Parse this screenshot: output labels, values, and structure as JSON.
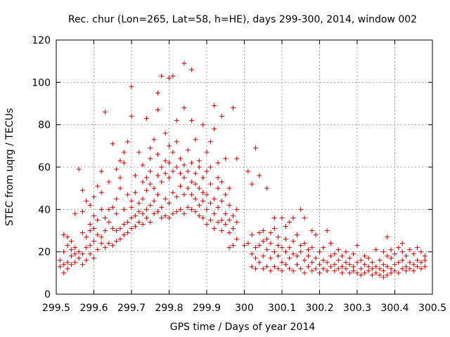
{
  "chart_data": {
    "type": "scatter",
    "title": "Rec. chur (Lon=265, Lat=58, h=HE), days 299-300, 2014, window 002",
    "xlabel": "GPS time / Days of year 2014",
    "ylabel": "STEC from uqrg / TECUs",
    "xlim": [
      299.5,
      300.5
    ],
    "ylim": [
      0,
      120
    ],
    "x_ticks": [
      "299.5",
      "299.6",
      "299.7",
      "299.8",
      "299.9",
      "300",
      "300.1",
      "300.2",
      "300.3",
      "300.4",
      "300.5"
    ],
    "y_ticks": [
      "0",
      "20",
      "40",
      "60",
      "80",
      "100",
      "120"
    ],
    "grid": true,
    "marker": "+",
    "color": "#cc0000",
    "points": [
      [
        299.51,
        13
      ],
      [
        299.51,
        16
      ],
      [
        299.52,
        10
      ],
      [
        299.52,
        14
      ],
      [
        299.52,
        20
      ],
      [
        299.52,
        28
      ],
      [
        299.53,
        12
      ],
      [
        299.53,
        15
      ],
      [
        299.53,
        23
      ],
      [
        299.53,
        27
      ],
      [
        299.54,
        14
      ],
      [
        299.54,
        18
      ],
      [
        299.54,
        21
      ],
      [
        299.54,
        25
      ],
      [
        299.55,
        15
      ],
      [
        299.55,
        19
      ],
      [
        299.55,
        22
      ],
      [
        299.55,
        38
      ],
      [
        299.56,
        17
      ],
      [
        299.56,
        20
      ],
      [
        299.56,
        59
      ],
      [
        299.57,
        14
      ],
      [
        299.57,
        19
      ],
      [
        299.57,
        29
      ],
      [
        299.57,
        39
      ],
      [
        299.57,
        49
      ],
      [
        299.58,
        16
      ],
      [
        299.58,
        22
      ],
      [
        299.58,
        27
      ],
      [
        299.58,
        44
      ],
      [
        299.59,
        19
      ],
      [
        299.59,
        23
      ],
      [
        299.59,
        30
      ],
      [
        299.59,
        33
      ],
      [
        299.59,
        42
      ],
      [
        299.6,
        17
      ],
      [
        299.6,
        25
      ],
      [
        299.6,
        31
      ],
      [
        299.6,
        37
      ],
      [
        299.6,
        46
      ],
      [
        299.61,
        21
      ],
      [
        299.61,
        28
      ],
      [
        299.61,
        35
      ],
      [
        299.61,
        51
      ],
      [
        299.62,
        24
      ],
      [
        299.62,
        27
      ],
      [
        299.62,
        40
      ],
      [
        299.62,
        48
      ],
      [
        299.62,
        58
      ],
      [
        299.63,
        22
      ],
      [
        299.63,
        30
      ],
      [
        299.63,
        36
      ],
      [
        299.63,
        86
      ],
      [
        299.64,
        24
      ],
      [
        299.64,
        34
      ],
      [
        299.64,
        40
      ],
      [
        299.64,
        53
      ],
      [
        299.65,
        23
      ],
      [
        299.65,
        31
      ],
      [
        299.65,
        41
      ],
      [
        299.65,
        71
      ],
      [
        299.66,
        25
      ],
      [
        299.66,
        30
      ],
      [
        299.66,
        38
      ],
      [
        299.66,
        45
      ],
      [
        299.66,
        59
      ],
      [
        299.67,
        26
      ],
      [
        299.67,
        31
      ],
      [
        299.67,
        50
      ],
      [
        299.67,
        55
      ],
      [
        299.67,
        63
      ],
      [
        299.68,
        28
      ],
      [
        299.68,
        33
      ],
      [
        299.68,
        40
      ],
      [
        299.68,
        62
      ],
      [
        299.68,
        67
      ],
      [
        299.69,
        29
      ],
      [
        299.69,
        34
      ],
      [
        299.69,
        47
      ],
      [
        299.69,
        72
      ],
      [
        299.7,
        31
      ],
      [
        299.7,
        36
      ],
      [
        299.7,
        41
      ],
      [
        299.7,
        44
      ],
      [
        299.7,
        84
      ],
      [
        299.7,
        98
      ],
      [
        299.71,
        32
      ],
      [
        299.71,
        37
      ],
      [
        299.71,
        48
      ],
      [
        299.71,
        56
      ],
      [
        299.72,
        34
      ],
      [
        299.72,
        39
      ],
      [
        299.72,
        43
      ],
      [
        299.72,
        67
      ],
      [
        299.73,
        33
      ],
      [
        299.73,
        38
      ],
      [
        299.73,
        45
      ],
      [
        299.73,
        53
      ],
      [
        299.73,
        61
      ],
      [
        299.74,
        36
      ],
      [
        299.74,
        40
      ],
      [
        299.74,
        49
      ],
      [
        299.74,
        55
      ],
      [
        299.74,
        83
      ],
      [
        299.75,
        34
      ],
      [
        299.75,
        42
      ],
      [
        299.75,
        52
      ],
      [
        299.75,
        58
      ],
      [
        299.75,
        64
      ],
      [
        299.75,
        69
      ],
      [
        299.76,
        38
      ],
      [
        299.76,
        44
      ],
      [
        299.76,
        50
      ],
      [
        299.76,
        73
      ],
      [
        299.77,
        39
      ],
      [
        299.77,
        47
      ],
      [
        299.77,
        56
      ],
      [
        299.77,
        66
      ],
      [
        299.77,
        87
      ],
      [
        299.77,
        95
      ],
      [
        299.78,
        36
      ],
      [
        299.78,
        41
      ],
      [
        299.78,
        53
      ],
      [
        299.78,
        60
      ],
      [
        299.78,
        103
      ],
      [
        299.79,
        37
      ],
      [
        299.79,
        45
      ],
      [
        299.79,
        57
      ],
      [
        299.79,
        63
      ],
      [
        299.79,
        76
      ],
      [
        299.8,
        36
      ],
      [
        299.8,
        43
      ],
      [
        299.8,
        55
      ],
      [
        299.8,
        62
      ],
      [
        299.8,
        70
      ],
      [
        299.8,
        102
      ],
      [
        299.81,
        38
      ],
      [
        299.81,
        48
      ],
      [
        299.81,
        58
      ],
      [
        299.81,
        67
      ],
      [
        299.81,
        103
      ],
      [
        299.82,
        39
      ],
      [
        299.82,
        46
      ],
      [
        299.82,
        60
      ],
      [
        299.82,
        72
      ],
      [
        299.82,
        82
      ],
      [
        299.83,
        40
      ],
      [
        299.83,
        51
      ],
      [
        299.83,
        57
      ],
      [
        299.83,
        64
      ],
      [
        299.84,
        38
      ],
      [
        299.84,
        47
      ],
      [
        299.84,
        55
      ],
      [
        299.84,
        61
      ],
      [
        299.84,
        88
      ],
      [
        299.84,
        109
      ],
      [
        299.85,
        41
      ],
      [
        299.85,
        50
      ],
      [
        299.85,
        58
      ],
      [
        299.85,
        68
      ],
      [
        299.86,
        40
      ],
      [
        299.86,
        47
      ],
      [
        299.86,
        53
      ],
      [
        299.86,
        62
      ],
      [
        299.86,
        82
      ],
      [
        299.86,
        106
      ],
      [
        299.87,
        39
      ],
      [
        299.87,
        45
      ],
      [
        299.87,
        52
      ],
      [
        299.87,
        57
      ],
      [
        299.87,
        73
      ],
      [
        299.88,
        37
      ],
      [
        299.88,
        42
      ],
      [
        299.88,
        50
      ],
      [
        299.88,
        60
      ],
      [
        299.88,
        63
      ],
      [
        299.89,
        36
      ],
      [
        299.89,
        44
      ],
      [
        299.89,
        48
      ],
      [
        299.89,
        55
      ],
      [
        299.89,
        80
      ],
      [
        299.9,
        33
      ],
      [
        299.9,
        40
      ],
      [
        299.9,
        47
      ],
      [
        299.9,
        58
      ],
      [
        299.9,
        67
      ],
      [
        299.91,
        35
      ],
      [
        299.91,
        43
      ],
      [
        299.91,
        52
      ],
      [
        299.91,
        60
      ],
      [
        299.91,
        72
      ],
      [
        299.92,
        31
      ],
      [
        299.92,
        38
      ],
      [
        299.92,
        45
      ],
      [
        299.92,
        89
      ],
      [
        299.92,
        78
      ],
      [
        299.93,
        34
      ],
      [
        299.93,
        41
      ],
      [
        299.93,
        50
      ],
      [
        299.93,
        55
      ],
      [
        299.93,
        62
      ],
      [
        299.94,
        30
      ],
      [
        299.94,
        35
      ],
      [
        299.94,
        44
      ],
      [
        299.94,
        53
      ],
      [
        299.94,
        84
      ],
      [
        299.95,
        33
      ],
      [
        299.95,
        38
      ],
      [
        299.95,
        47
      ],
      [
        299.95,
        64
      ],
      [
        299.96,
        22
      ],
      [
        299.96,
        29
      ],
      [
        299.96,
        35
      ],
      [
        299.96,
        42
      ],
      [
        299.96,
        50
      ],
      [
        299.97,
        23
      ],
      [
        299.97,
        31
      ],
      [
        299.97,
        37
      ],
      [
        299.97,
        88
      ],
      [
        299.98,
        26
      ],
      [
        299.98,
        34
      ],
      [
        299.98,
        40
      ],
      [
        299.98,
        64
      ],
      [
        300.0,
        23
      ],
      [
        300.01,
        24
      ],
      [
        300.01,
        58
      ],
      [
        300.02,
        13
      ],
      [
        300.02,
        19
      ],
      [
        300.02,
        28
      ],
      [
        300.02,
        52
      ],
      [
        300.03,
        12
      ],
      [
        300.03,
        17
      ],
      [
        300.03,
        22
      ],
      [
        300.03,
        69
      ],
      [
        300.04,
        15
      ],
      [
        300.04,
        23
      ],
      [
        300.04,
        29
      ],
      [
        300.04,
        56
      ],
      [
        300.05,
        12
      ],
      [
        300.05,
        18
      ],
      [
        300.05,
        25
      ],
      [
        300.05,
        30
      ],
      [
        300.06,
        13
      ],
      [
        300.06,
        21
      ],
      [
        300.06,
        26
      ],
      [
        300.06,
        50
      ],
      [
        300.07,
        11
      ],
      [
        300.07,
        17
      ],
      [
        300.07,
        24
      ],
      [
        300.07,
        29
      ],
      [
        300.08,
        13
      ],
      [
        300.08,
        20
      ],
      [
        300.08,
        31
      ],
      [
        300.08,
        36
      ],
      [
        300.09,
        12
      ],
      [
        300.09,
        18
      ],
      [
        300.09,
        23
      ],
      [
        300.09,
        27
      ],
      [
        300.1,
        11
      ],
      [
        300.1,
        15
      ],
      [
        300.1,
        22
      ],
      [
        300.1,
        36
      ],
      [
        300.11,
        14
      ],
      [
        300.11,
        20
      ],
      [
        300.11,
        26
      ],
      [
        300.11,
        32
      ],
      [
        300.12,
        12
      ],
      [
        300.12,
        17
      ],
      [
        300.12,
        22
      ],
      [
        300.12,
        34
      ],
      [
        300.13,
        11
      ],
      [
        300.13,
        19
      ],
      [
        300.13,
        25
      ],
      [
        300.13,
        36
      ],
      [
        300.14,
        14
      ],
      [
        300.14,
        18
      ],
      [
        300.14,
        28
      ],
      [
        300.15,
        12
      ],
      [
        300.15,
        20
      ],
      [
        300.15,
        23
      ],
      [
        300.15,
        40
      ],
      [
        300.16,
        10
      ],
      [
        300.16,
        16
      ],
      [
        300.16,
        24
      ],
      [
        300.16,
        36
      ],
      [
        300.17,
        13
      ],
      [
        300.17,
        18
      ],
      [
        300.17,
        21
      ],
      [
        300.18,
        11
      ],
      [
        300.18,
        15
      ],
      [
        300.18,
        22
      ],
      [
        300.18,
        30
      ],
      [
        300.19,
        12
      ],
      [
        300.19,
        17
      ],
      [
        300.19,
        28
      ],
      [
        300.2,
        10
      ],
      [
        300.2,
        14
      ],
      [
        300.2,
        20
      ],
      [
        300.21,
        12
      ],
      [
        300.21,
        16
      ],
      [
        300.21,
        22
      ],
      [
        300.22,
        11
      ],
      [
        300.22,
        15
      ],
      [
        300.22,
        30
      ],
      [
        300.23,
        13
      ],
      [
        300.23,
        18
      ],
      [
        300.23,
        24
      ],
      [
        300.24,
        11
      ],
      [
        300.24,
        14
      ],
      [
        300.24,
        19
      ],
      [
        300.25,
        12
      ],
      [
        300.25,
        16
      ],
      [
        300.25,
        21
      ],
      [
        300.26,
        10
      ],
      [
        300.26,
        13
      ],
      [
        300.26,
        18
      ],
      [
        300.27,
        12
      ],
      [
        300.27,
        15
      ],
      [
        300.27,
        20
      ],
      [
        300.28,
        10
      ],
      [
        300.28,
        14
      ],
      [
        300.28,
        17
      ],
      [
        300.29,
        11
      ],
      [
        300.29,
        13
      ],
      [
        300.29,
        19
      ],
      [
        300.3,
        10
      ],
      [
        300.3,
        15
      ],
      [
        300.3,
        23
      ],
      [
        300.31,
        9
      ],
      [
        300.31,
        12
      ],
      [
        300.31,
        16
      ],
      [
        300.32,
        10
      ],
      [
        300.32,
        14
      ],
      [
        300.32,
        18
      ],
      [
        300.33,
        11
      ],
      [
        300.33,
        13
      ],
      [
        300.33,
        17
      ],
      [
        300.34,
        9
      ],
      [
        300.34,
        12
      ],
      [
        300.34,
        15
      ],
      [
        300.35,
        10
      ],
      [
        300.35,
        13
      ],
      [
        300.35,
        21
      ],
      [
        300.36,
        9
      ],
      [
        300.36,
        12
      ],
      [
        300.36,
        16
      ],
      [
        300.37,
        8
      ],
      [
        300.37,
        11
      ],
      [
        300.37,
        14
      ],
      [
        300.37,
        20
      ],
      [
        300.38,
        9
      ],
      [
        300.38,
        13
      ],
      [
        300.38,
        18
      ],
      [
        300.38,
        27
      ],
      [
        300.39,
        10
      ],
      [
        300.39,
        12
      ],
      [
        300.39,
        17
      ],
      [
        300.39,
        21
      ],
      [
        300.4,
        11
      ],
      [
        300.4,
        14
      ],
      [
        300.4,
        19
      ],
      [
        300.41,
        10
      ],
      [
        300.41,
        15
      ],
      [
        300.41,
        22
      ],
      [
        300.42,
        12
      ],
      [
        300.42,
        16
      ],
      [
        300.42,
        20
      ],
      [
        300.42,
        24
      ],
      [
        300.43,
        11
      ],
      [
        300.43,
        13
      ],
      [
        300.43,
        18
      ],
      [
        300.44,
        12
      ],
      [
        300.44,
        15
      ],
      [
        300.44,
        21
      ],
      [
        300.45,
        11
      ],
      [
        300.45,
        14
      ],
      [
        300.45,
        19
      ],
      [
        300.46,
        13
      ],
      [
        300.46,
        16
      ],
      [
        300.46,
        22
      ],
      [
        300.47,
        12
      ],
      [
        300.47,
        15
      ],
      [
        300.47,
        20
      ],
      [
        300.48,
        13
      ],
      [
        300.48,
        16
      ],
      [
        300.48,
        18
      ]
    ]
  }
}
